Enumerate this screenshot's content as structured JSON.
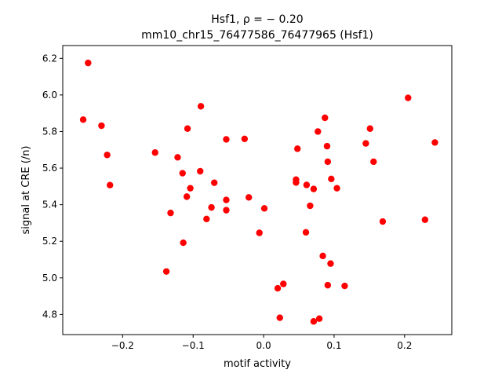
{
  "chart_data": {
    "type": "scatter",
    "title_line1": "Hsf1, ρ = − 0.20",
    "title_line2": "mm10_chr15_76477586_76477965 (Hsf1)",
    "xlabel": "motif activity",
    "ylabel": "signal at CRE (/n)",
    "xlim": [
      -0.285,
      0.267
    ],
    "ylim": [
      4.69,
      6.27
    ],
    "xticks": [
      -0.2,
      -0.1,
      0.0,
      0.1,
      0.2
    ],
    "xtick_labels": [
      "−0.2",
      "−0.1",
      "0.0",
      "0.1",
      "0.2"
    ],
    "yticks": [
      4.8,
      5.0,
      5.2,
      5.4,
      5.6,
      5.8,
      6.0,
      6.2
    ],
    "ytick_labels": [
      "4.8",
      "5.0",
      "5.2",
      "5.4",
      "5.6",
      "5.8",
      "6.0",
      "6.2"
    ],
    "grid": false,
    "marker_color": "#ff0000",
    "points": [
      [
        -0.249,
        6.175
      ],
      [
        -0.256,
        5.865
      ],
      [
        -0.23,
        5.832
      ],
      [
        -0.222,
        5.672
      ],
      [
        -0.218,
        5.507
      ],
      [
        -0.154,
        5.685
      ],
      [
        -0.138,
        5.035
      ],
      [
        -0.132,
        5.355
      ],
      [
        -0.122,
        5.659
      ],
      [
        -0.115,
        5.572
      ],
      [
        -0.114,
        5.192
      ],
      [
        -0.109,
        5.444
      ],
      [
        -0.108,
        5.816
      ],
      [
        -0.104,
        5.49
      ],
      [
        -0.089,
        5.938
      ],
      [
        -0.09,
        5.583
      ],
      [
        -0.081,
        5.322
      ],
      [
        -0.074,
        5.385
      ],
      [
        -0.07,
        5.52
      ],
      [
        -0.053,
        5.757
      ],
      [
        -0.053,
        5.426
      ],
      [
        -0.053,
        5.37
      ],
      [
        -0.027,
        5.76
      ],
      [
        -0.021,
        5.44
      ],
      [
        -0.006,
        5.246
      ],
      [
        0.001,
        5.38
      ],
      [
        0.02,
        4.943
      ],
      [
        0.023,
        4.782
      ],
      [
        0.028,
        4.967
      ],
      [
        0.046,
        5.537
      ],
      [
        0.046,
        5.521
      ],
      [
        0.048,
        5.706
      ],
      [
        0.06,
        5.249
      ],
      [
        0.061,
        5.508
      ],
      [
        0.066,
        5.394
      ],
      [
        0.071,
        4.762
      ],
      [
        0.071,
        5.486
      ],
      [
        0.077,
        5.8
      ],
      [
        0.079,
        4.777
      ],
      [
        0.084,
        5.12
      ],
      [
        0.087,
        5.875
      ],
      [
        0.09,
        5.72
      ],
      [
        0.091,
        5.635
      ],
      [
        0.091,
        4.96
      ],
      [
        0.095,
        5.078
      ],
      [
        0.096,
        5.541
      ],
      [
        0.104,
        5.49
      ],
      [
        0.115,
        4.956
      ],
      [
        0.145,
        5.735
      ],
      [
        0.151,
        5.816
      ],
      [
        0.156,
        5.635
      ],
      [
        0.169,
        5.308
      ],
      [
        0.205,
        5.984
      ],
      [
        0.229,
        5.318
      ],
      [
        0.243,
        5.74
      ]
    ]
  }
}
